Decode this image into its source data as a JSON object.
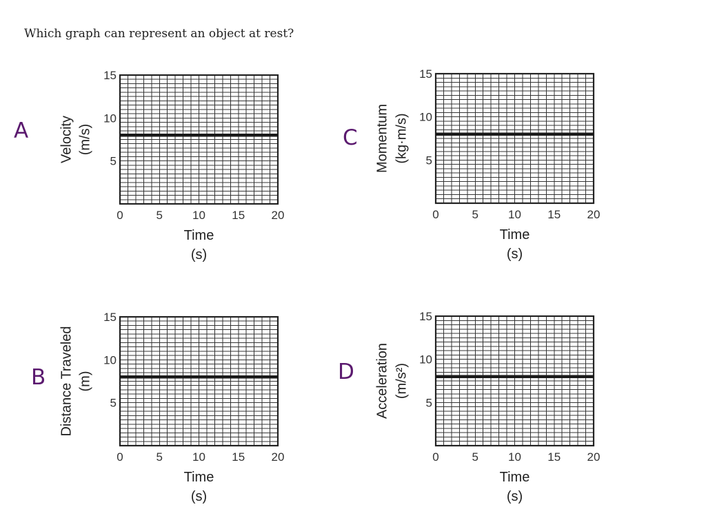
{
  "question": "Which graph can represent an object at rest?",
  "colors": {
    "option_letter": "#5b1a6f",
    "text": "#222222",
    "grid": "#333333",
    "line": "#1a1a1a"
  },
  "chart_data": [
    {
      "type": "line",
      "option": "A",
      "title": "",
      "xlabel": "Time",
      "xunit": "(s)",
      "ylabel": "Velocity",
      "yunit": "(m/s)",
      "xlim": [
        0,
        20
      ],
      "ylim": [
        0,
        15
      ],
      "xticks": [
        0,
        5,
        10,
        15,
        20
      ],
      "yticks": [
        5,
        10,
        15
      ],
      "grid": true,
      "series": [
        {
          "x": [
            0,
            20
          ],
          "y": [
            8,
            8
          ]
        }
      ]
    },
    {
      "type": "line",
      "option": "B",
      "title": "",
      "xlabel": "Time",
      "xunit": "(s)",
      "ylabel": "Distance Traveled",
      "yunit": "(m)",
      "xlim": [
        0,
        20
      ],
      "ylim": [
        0,
        15
      ],
      "xticks": [
        0,
        5,
        10,
        15,
        20
      ],
      "yticks": [
        5,
        10,
        15
      ],
      "grid": true,
      "series": [
        {
          "x": [
            0,
            20
          ],
          "y": [
            8,
            8
          ]
        }
      ]
    },
    {
      "type": "line",
      "option": "C",
      "title": "",
      "xlabel": "Time",
      "xunit": "(s)",
      "ylabel": "Momentum",
      "yunit": "(kg·m/s)",
      "xlim": [
        0,
        20
      ],
      "ylim": [
        0,
        15
      ],
      "xticks": [
        0,
        5,
        10,
        15,
        20
      ],
      "yticks": [
        5,
        10,
        15
      ],
      "grid": true,
      "series": [
        {
          "x": [
            0,
            20
          ],
          "y": [
            8,
            8
          ]
        }
      ]
    },
    {
      "type": "line",
      "option": "D",
      "title": "",
      "xlabel": "Time",
      "xunit": "(s)",
      "ylabel": "Acceleration",
      "yunit": "(m/s²)",
      "xlim": [
        0,
        20
      ],
      "ylim": [
        0,
        15
      ],
      "xticks": [
        0,
        5,
        10,
        15,
        20
      ],
      "yticks": [
        5,
        10,
        15
      ],
      "grid": true,
      "series": [
        {
          "x": [
            0,
            20
          ],
          "y": [
            8,
            8
          ]
        }
      ]
    }
  ]
}
